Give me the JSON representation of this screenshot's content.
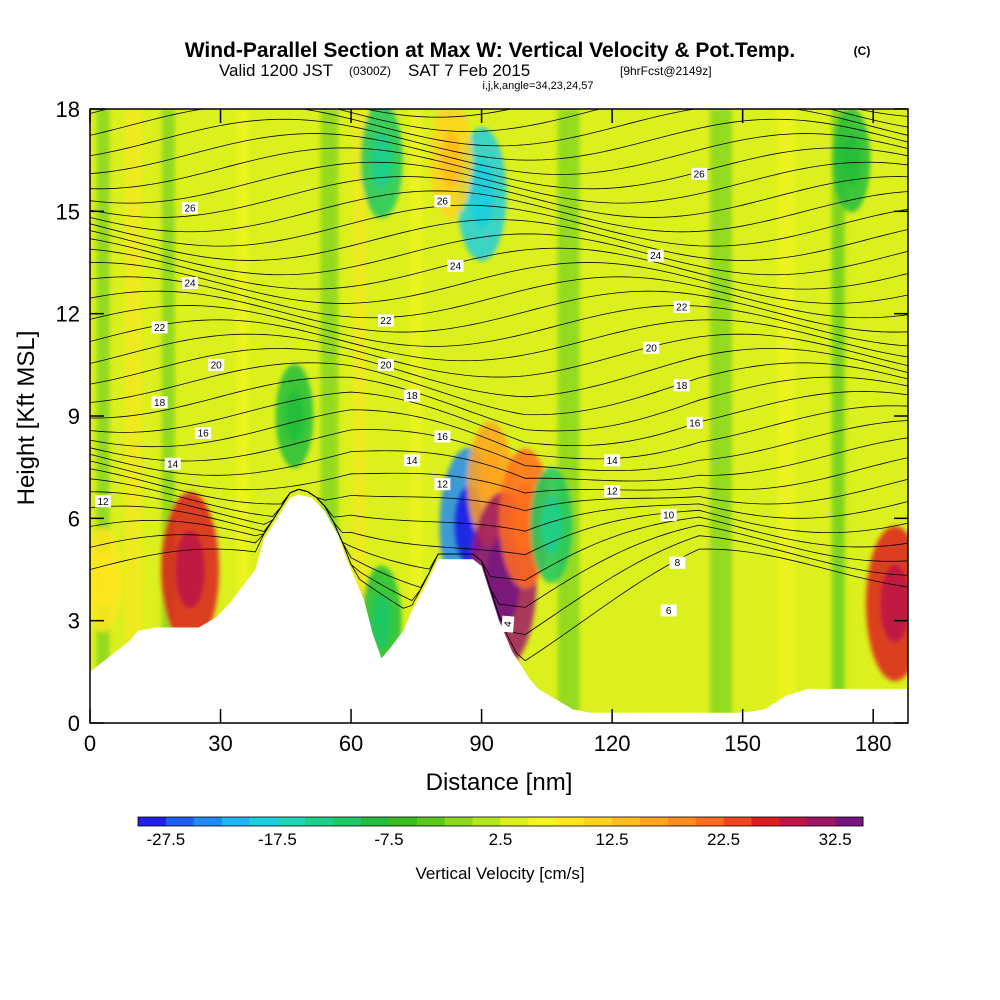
{
  "header": {
    "title": "Wind-Parallel Section at Max W: Vertical Velocity & Pot.Temp.",
    "copyright": "(C)",
    "valid_prefix": "Valid 1200 JST",
    "valid_zulu": "(0300Z)",
    "valid_date": "SAT 7 Feb 2015",
    "forecast_info": "[9hrFcst@2149z]",
    "indices": "i,j,k,angle=34,23,24,57"
  },
  "chart_data": {
    "type": "heatmap",
    "title": "Wind-Parallel Section at Max W: Vertical Velocity & Pot.Temp.",
    "xlabel": "Distance [nm]",
    "ylabel": "Height [Kft MSL]",
    "xlim": [
      0,
      188
    ],
    "ylim": [
      0,
      18
    ],
    "x_ticks": [
      0,
      30,
      60,
      90,
      120,
      150,
      180
    ],
    "x_tick_labels": [
      "0",
      "30",
      "60",
      "90",
      "120",
      "150",
      "180"
    ],
    "y_ticks": [
      0,
      3,
      6,
      9,
      12,
      15,
      18
    ],
    "y_tick_labels": [
      "0",
      "3",
      "6",
      "9",
      "12",
      "15",
      "18"
    ],
    "colorbar": {
      "label": "Vertical Velocity [cm/s]",
      "min": -30,
      "max": 35,
      "step": 2.5,
      "tick_values": [
        -27.5,
        -17.5,
        -7.5,
        2.5,
        12.5,
        22.5,
        32.5
      ],
      "tick_labels": [
        "-27.5",
        "-17.5",
        "-7.5",
        "2.5",
        "12.5",
        "22.5",
        "32.5"
      ],
      "colors": [
        "#1f1fe6",
        "#1f5ff0",
        "#1f8cf5",
        "#1fb4f5",
        "#1ccfe0",
        "#1fd6b4",
        "#1ecf8c",
        "#1ec864",
        "#22be3c",
        "#37be1c",
        "#5ac81c",
        "#8cd71c",
        "#b4e61e",
        "#dcf01e",
        "#f5f51e",
        "#ffe61e",
        "#ffd21e",
        "#ffbe1e",
        "#ffa51e",
        "#ff8c1e",
        "#ff6e1e",
        "#f0461e",
        "#dc1e1e",
        "#be1446",
        "#a01464",
        "#781482"
      ]
    },
    "wind_speed_field": {
      "background_value_cm_s": 2,
      "features": [
        {
          "x": 3,
          "y": 4.2,
          "w": 2.5,
          "value": 8
        },
        {
          "x": 23,
          "y": 4.5,
          "w": 25,
          "value": 25
        },
        {
          "x": 47,
          "y": 9.0,
          "w": -10,
          "value": -8
        },
        {
          "x": 67,
          "y": 3.0,
          "w": -12,
          "value": -10
        },
        {
          "x": 87,
          "y": 5.8,
          "w": -25,
          "value": -25
        },
        {
          "x": 92,
          "y": 7.0,
          "w": 15,
          "value": 15
        },
        {
          "x": 95,
          "y": 4.2,
          "w": 32,
          "value": 32
        },
        {
          "x": 100,
          "y": 6.0,
          "w": 20,
          "value": 20
        },
        {
          "x": 106,
          "y": 5.8,
          "w": -12,
          "value": -12
        },
        {
          "x": 67,
          "y": 16.5,
          "w": -12,
          "value": -12
        },
        {
          "x": 90,
          "y": 15.5,
          "w": -18,
          "value": -18
        },
        {
          "x": 83,
          "y": 16.5,
          "w": 12,
          "value": 12
        },
        {
          "x": 175,
          "y": 16.5,
          "w": -8,
          "value": -8
        },
        {
          "x": 185,
          "y": 3.5,
          "w": 25,
          "value": 25
        }
      ]
    },
    "terrain_height_kft": {
      "x": [
        0,
        3,
        6,
        9,
        11,
        15,
        20,
        25,
        29,
        32,
        35,
        38,
        40,
        43,
        46,
        48,
        51,
        54,
        57,
        59,
        61,
        63,
        65,
        67,
        69,
        72,
        74,
        77,
        80,
        82,
        85,
        88,
        90,
        92,
        94,
        97,
        99,
        101,
        103,
        107,
        111,
        115,
        120,
        125,
        130,
        135,
        140,
        145,
        150,
        155,
        160,
        165,
        170,
        175,
        180,
        185,
        188
      ],
      "y": [
        1.5,
        1.8,
        2.1,
        2.4,
        2.7,
        2.8,
        2.8,
        2.8,
        3.1,
        3.5,
        4.0,
        4.5,
        5.4,
        6.0,
        6.6,
        6.7,
        6.6,
        6.2,
        5.5,
        4.8,
        4.2,
        3.6,
        2.6,
        1.9,
        2.2,
        2.7,
        3.3,
        4.0,
        4.8,
        4.8,
        4.8,
        4.8,
        4.6,
        3.8,
        3.0,
        2.1,
        1.7,
        1.3,
        1.0,
        0.7,
        0.4,
        0.3,
        0.3,
        0.3,
        0.3,
        0.3,
        0.3,
        0.3,
        0.3,
        0.4,
        0.8,
        1.0,
        1.0,
        1.0,
        1.0,
        1.0,
        1.0
      ]
    },
    "potential_temperature_contours": {
      "levels_labeled": [
        {
          "level": "4",
          "x": 96,
          "y": 2.9,
          "rotation": -85
        },
        {
          "level": "6",
          "x": 133,
          "y": 3.3,
          "rotation": 0
        },
        {
          "level": "8",
          "x": 135,
          "y": 4.7,
          "rotation": 0
        },
        {
          "level": "10",
          "x": 133,
          "y": 6.1,
          "rotation": 0
        },
        {
          "level": "12",
          "x": 3,
          "y": 6.5,
          "rotation": 0
        },
        {
          "level": "12",
          "x": 81,
          "y": 7.0,
          "rotation": 0
        },
        {
          "level": "12",
          "x": 120,
          "y": 6.8,
          "rotation": 0
        },
        {
          "level": "14",
          "x": 19,
          "y": 7.6,
          "rotation": 0
        },
        {
          "level": "14",
          "x": 74,
          "y": 7.7,
          "rotation": 0
        },
        {
          "level": "14",
          "x": 120,
          "y": 7.7,
          "rotation": 0
        },
        {
          "level": "16",
          "x": 26,
          "y": 8.5,
          "rotation": 0
        },
        {
          "level": "16",
          "x": 81,
          "y": 8.4,
          "rotation": 0
        },
        {
          "level": "16",
          "x": 139,
          "y": 8.8,
          "rotation": 0
        },
        {
          "level": "18",
          "x": 16,
          "y": 9.4,
          "rotation": 0
        },
        {
          "level": "18",
          "x": 74,
          "y": 9.6,
          "rotation": 0
        },
        {
          "level": "18",
          "x": 136,
          "y": 9.9,
          "rotation": 0
        },
        {
          "level": "20",
          "x": 29,
          "y": 10.5,
          "rotation": 0
        },
        {
          "level": "20",
          "x": 68,
          "y": 10.5,
          "rotation": 0
        },
        {
          "level": "20",
          "x": 129,
          "y": 11.0,
          "rotation": 0
        },
        {
          "level": "22",
          "x": 16,
          "y": 11.6,
          "rotation": 0
        },
        {
          "level": "22",
          "x": 68,
          "y": 11.8,
          "rotation": 0
        },
        {
          "level": "22",
          "x": 136,
          "y": 12.2,
          "rotation": 0
        },
        {
          "level": "24",
          "x": 23,
          "y": 12.9,
          "rotation": 0
        },
        {
          "level": "24",
          "x": 84,
          "y": 13.4,
          "rotation": 0
        },
        {
          "level": "24",
          "x": 130,
          "y": 13.7,
          "rotation": 0
        },
        {
          "level": "26",
          "x": 23,
          "y": 15.1,
          "rotation": 0
        },
        {
          "level": "26",
          "x": 81,
          "y": 15.3,
          "rotation": 0
        },
        {
          "level": "26",
          "x": 140,
          "y": 16.1,
          "rotation": 0
        }
      ]
    }
  }
}
